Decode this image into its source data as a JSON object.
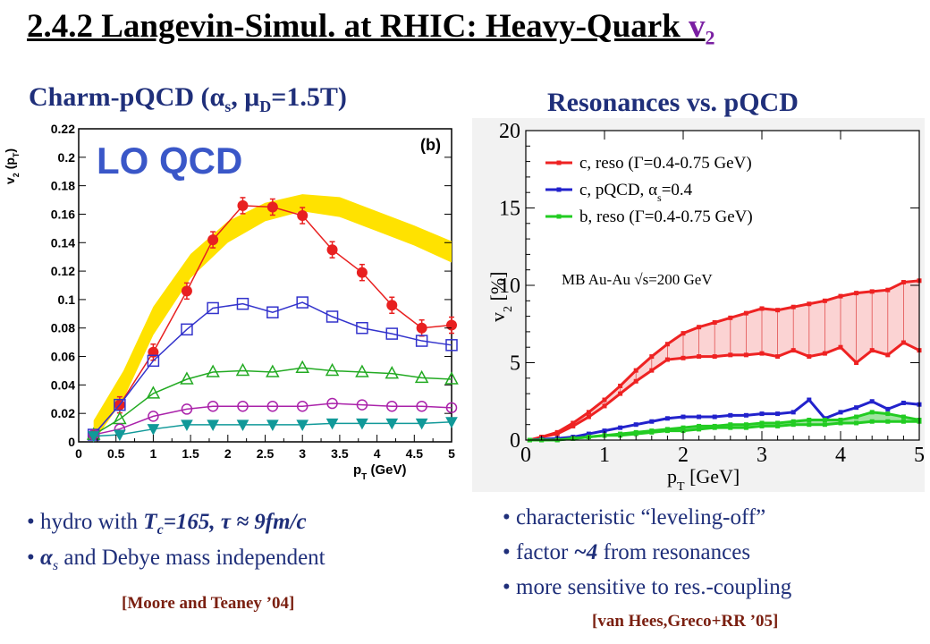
{
  "title": {
    "main": "2.4.2 Langevin-Simul. at RHIC: Heavy-Quark ",
    "v": "v",
    "sub": "2"
  },
  "left_subtitle": {
    "pre": "Charm-pQCD (",
    "alpha": "α",
    "s": "s",
    "mid": ", ",
    "mu": "μ",
    "D": "D",
    "post": "=1.5T)"
  },
  "right_subtitle": "Resonances vs. pQCD",
  "left_bullets": [
    {
      "a": "hydro with ",
      "b": "T",
      "c": "c",
      "d": "=165,  τ ≈ 9fm/c"
    },
    {
      "a": "α",
      "b": "s",
      "c": " and Debye mass independent"
    }
  ],
  "left_ref": "[Moore and Teaney ’04]",
  "right_bullets": [
    "characteristic “leveling-off”",
    {
      "a": "factor ",
      "b": "~4",
      "c": " from resonances"
    },
    "more sensitive to res.-coupling"
  ],
  "right_ref": "[van Hees,Greco+RR ’05]",
  "chart_data": [
    {
      "type": "scatter",
      "panel_label": "(b)",
      "overlay_text": "LO QCD",
      "xlabel": "p",
      "xlabel_sub": "T",
      "xlabel_unit": " (GeV)",
      "ylabel": "v",
      "ylabel_sub": "2",
      "ylabel_arg": " (p",
      "ylabel_arg_sub": "T",
      "ylabel_close": ")",
      "xlim": [
        0,
        5
      ],
      "ylim": [
        0,
        0.22
      ],
      "xticks": [
        "0",
        "0.5",
        "1",
        "1.5",
        "2",
        "2.5",
        "3",
        "3.5",
        "4",
        "4.5",
        "5"
      ],
      "yticks": [
        "0",
        "0.02",
        "0.04",
        "0.06",
        "0.08",
        "0.1",
        "0.12",
        "0.14",
        "0.16",
        "0.18",
        "0.2",
        "0.22"
      ],
      "x": [
        0.2,
        0.55,
        1.0,
        1.45,
        1.8,
        2.2,
        2.6,
        3.0,
        3.4,
        3.8,
        4.2,
        4.6,
        5.0
      ],
      "band": {
        "color": "#ffe200",
        "x": [
          0.2,
          0.6,
          1.0,
          1.5,
          2.0,
          2.5,
          3.0,
          3.5,
          4.0,
          4.5,
          5.0
        ],
        "lower": [
          0.0,
          0.03,
          0.075,
          0.115,
          0.14,
          0.155,
          0.162,
          0.158,
          0.148,
          0.138,
          0.126
        ],
        "upper": [
          0.015,
          0.05,
          0.095,
          0.132,
          0.155,
          0.168,
          0.174,
          0.172,
          0.162,
          0.152,
          0.141
        ]
      },
      "series": [
        {
          "color": "#e82020",
          "marker": "filled-circle",
          "errors": true,
          "values": [
            0.005,
            0.026,
            0.063,
            0.106,
            0.142,
            0.166,
            0.165,
            0.159,
            0.135,
            0.119,
            0.096,
            0.08,
            0.082
          ]
        },
        {
          "color": "#3333cc",
          "marker": "open-square",
          "values": [
            0.005,
            0.026,
            0.057,
            0.079,
            0.094,
            0.097,
            0.091,
            0.098,
            0.088,
            0.08,
            0.076,
            0.071,
            0.068
          ]
        },
        {
          "color": "#22aa22",
          "marker": "open-triangle-up",
          "values": [
            0.005,
            0.016,
            0.034,
            0.044,
            0.049,
            0.05,
            0.049,
            0.052,
            0.05,
            0.049,
            0.048,
            0.045,
            0.044
          ]
        },
        {
          "color": "#aa22aa",
          "marker": "open-circle",
          "values": [
            0.005,
            0.009,
            0.018,
            0.023,
            0.025,
            0.025,
            0.025,
            0.025,
            0.027,
            0.026,
            0.025,
            0.025,
            0.024
          ]
        },
        {
          "color": "#119999",
          "marker": "filled-triangle-down",
          "values": [
            0.004,
            0.005,
            0.009,
            0.012,
            0.012,
            0.012,
            0.012,
            0.012,
            0.013,
            0.013,
            0.013,
            0.013,
            0.014
          ]
        }
      ]
    },
    {
      "type": "line",
      "xlabel": "p",
      "xlabel_sub": "T",
      "xlabel_unit": " [GeV]",
      "ylabel": "v",
      "ylabel_sub": "2",
      "ylabel_unit": " [%]",
      "xlim": [
        0,
        5
      ],
      "ylim": [
        0,
        20
      ],
      "xticks": [
        "0",
        "1",
        "2",
        "3",
        "4",
        "5"
      ],
      "yticks": [
        "0",
        "5",
        "10",
        "15",
        "20"
      ],
      "annotation": {
        "a": "MB Au-Au ",
        "b": "√",
        "c": "s=200 GeV"
      },
      "legend": [
        {
          "color": "#ee2222",
          "label_a": "c, reso (",
          "label_b": "Γ",
          "label_c": "=0.4-0.75 GeV)"
        },
        {
          "color": "#2222cc",
          "label_a": "c, pQCD, ",
          "label_b": "α",
          "label_s": "s",
          "label_c": "=0.4"
        },
        {
          "color": "#22cc22",
          "label_a": "b, reso (",
          "label_b": "Γ",
          "label_c": "=0.4-0.75 GeV)"
        }
      ],
      "x": [
        0.05,
        0.2,
        0.4,
        0.6,
        0.8,
        1.0,
        1.2,
        1.4,
        1.6,
        1.8,
        2.0,
        2.2,
        2.4,
        2.6,
        2.8,
        3.0,
        3.2,
        3.4,
        3.6,
        3.8,
        4.0,
        4.2,
        4.4,
        4.6,
        4.8,
        5.0
      ],
      "series": [
        {
          "name": "c, reso upper",
          "color": "#ee2222",
          "values": [
            0.0,
            0.2,
            0.5,
            1.1,
            1.8,
            2.6,
            3.5,
            4.5,
            5.4,
            6.2,
            6.9,
            7.3,
            7.6,
            7.9,
            8.2,
            8.5,
            8.4,
            8.6,
            8.8,
            9.0,
            9.3,
            9.5,
            9.6,
            9.7,
            10.2,
            10.3
          ]
        },
        {
          "name": "c, reso lower",
          "color": "#ee2222",
          "values": [
            0.0,
            0.2,
            0.4,
            0.9,
            1.5,
            2.2,
            3.0,
            3.8,
            4.5,
            5.2,
            5.3,
            5.4,
            5.4,
            5.5,
            5.5,
            5.6,
            5.4,
            5.8,
            5.4,
            5.6,
            6.0,
            5.0,
            5.8,
            5.5,
            6.3,
            5.8
          ]
        },
        {
          "name": "c, pQCD",
          "color": "#2222cc",
          "values": [
            0.0,
            0.05,
            0.1,
            0.2,
            0.4,
            0.6,
            0.8,
            1.0,
            1.2,
            1.4,
            1.5,
            1.5,
            1.5,
            1.6,
            1.6,
            1.7,
            1.7,
            1.8,
            2.6,
            1.4,
            1.8,
            2.1,
            2.5,
            2.0,
            2.4,
            2.3
          ]
        },
        {
          "name": "b, reso upper",
          "color": "#22cc22",
          "values": [
            0.0,
            0.0,
            0.0,
            0.1,
            0.2,
            0.3,
            0.4,
            0.5,
            0.6,
            0.7,
            0.8,
            0.9,
            0.9,
            1.0,
            1.0,
            1.1,
            1.1,
            1.2,
            1.3,
            1.3,
            1.3,
            1.5,
            1.8,
            1.7,
            1.5,
            1.3
          ]
        },
        {
          "name": "b, reso lower",
          "color": "#22cc22",
          "values": [
            0.0,
            0.0,
            0.0,
            0.1,
            0.2,
            0.3,
            0.3,
            0.4,
            0.5,
            0.6,
            0.6,
            0.7,
            0.8,
            0.8,
            0.8,
            0.9,
            0.9,
            1.0,
            1.0,
            1.0,
            1.1,
            1.1,
            1.2,
            1.2,
            1.2,
            1.2
          ]
        }
      ]
    }
  ]
}
